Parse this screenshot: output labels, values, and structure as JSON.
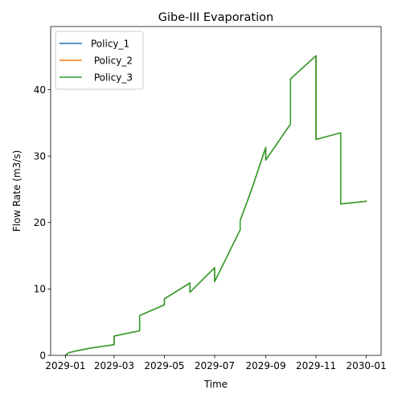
{
  "chart_data": {
    "type": "line",
    "title": "Gibe-III Evaporation",
    "xlabel": "Time",
    "ylabel": "Flow Rate (m3/s)",
    "x_tick_labels": [
      "2029-01",
      "2029-03",
      "2029-05",
      "2029-07",
      "2029-09",
      "2029-11",
      "2030-01"
    ],
    "x_ticks": [
      "2029-01-01",
      "2029-03-01",
      "2029-05-01",
      "2029-07-01",
      "2029-09-01",
      "2029-11-01",
      "2030-01-01"
    ],
    "xlim": [
      "2028-12-14",
      "2030-01-19"
    ],
    "y_ticks": [
      0,
      10,
      20,
      30,
      40
    ],
    "ylim": [
      0,
      49.5
    ],
    "grid": false,
    "legend_position": "upper-left",
    "x": [
      "2029-01-01",
      "2029-01-05",
      "2029-01-15",
      "2029-02-01",
      "2029-03-01",
      "2029-03-01",
      "2029-04-01",
      "2029-04-01",
      "2029-05-01",
      "2029-05-01",
      "2029-06-01",
      "2029-06-01",
      "2029-07-01",
      "2029-07-01",
      "2029-08-01",
      "2029-08-01",
      "2029-08-15",
      "2029-09-01",
      "2029-09-01",
      "2029-10-01",
      "2029-10-01",
      "2029-11-01",
      "2029-11-01",
      "2029-12-01",
      "2029-12-01",
      "2030-01-01"
    ],
    "series": [
      {
        "name": "Policy_1",
        "color": "#1f77b4",
        "values": [
          0.0,
          0.4,
          0.7,
          1.1,
          1.6,
          2.9,
          3.7,
          6.0,
          7.6,
          8.5,
          10.9,
          9.5,
          13.2,
          11.1,
          18.9,
          20.3,
          25.0,
          31.3,
          29.4,
          34.8,
          41.6,
          45.1,
          32.5,
          33.5,
          22.8,
          23.2
        ]
      },
      {
        "name": " Policy_2",
        "color": "#ff7f0e",
        "values": [
          0.0,
          0.4,
          0.7,
          1.1,
          1.6,
          2.9,
          3.7,
          6.0,
          7.6,
          8.5,
          10.9,
          9.5,
          13.2,
          11.1,
          18.9,
          20.3,
          25.0,
          31.3,
          29.4,
          34.8,
          41.6,
          45.1,
          32.5,
          33.5,
          22.8,
          23.2
        ]
      },
      {
        "name": " Policy_3",
        "color": "#2ca02c",
        "values": [
          0.0,
          0.4,
          0.7,
          1.1,
          1.6,
          2.9,
          3.7,
          6.0,
          7.6,
          8.5,
          10.9,
          9.5,
          13.2,
          11.1,
          18.9,
          20.3,
          25.0,
          31.3,
          29.4,
          34.8,
          41.6,
          45.1,
          32.5,
          33.5,
          22.8,
          23.2
        ]
      }
    ]
  }
}
